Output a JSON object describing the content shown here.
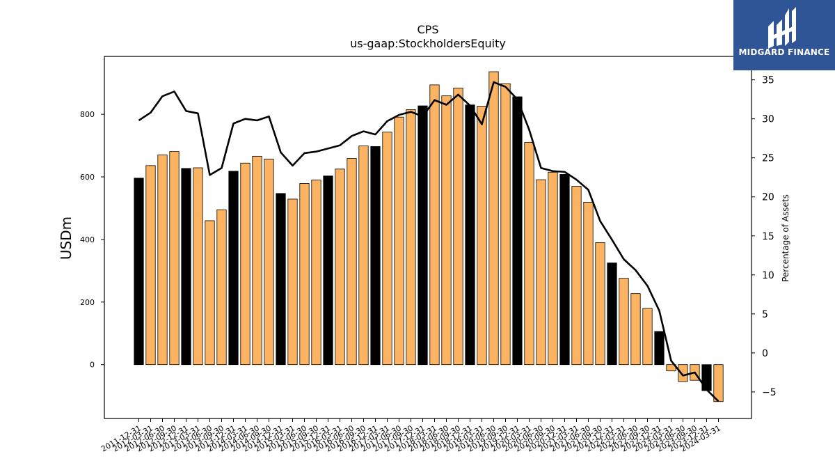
{
  "brand": {
    "name": "MIDGARD FINANCE",
    "color": "#2f5597"
  },
  "colors": {
    "bar_quarter": "#fdb462",
    "bar_year_end": "#000000",
    "line": "#000000"
  },
  "chart_data": {
    "type": "bar",
    "title": "CPS",
    "subtitle": "us-gaap:StockholdersEquity",
    "ylabel": "USDm",
    "y2label": "Percentage of Assets",
    "ylim": [
      -172,
      985
    ],
    "y2lim": [
      -8.4,
      38.0
    ],
    "yticks": [
      0,
      200,
      400,
      600,
      800
    ],
    "y2ticks": [
      -5,
      0,
      5,
      10,
      15,
      20,
      25,
      30,
      35
    ],
    "grid": false,
    "categories": [
      "2011-12-31",
      "2012-03-31",
      "2012-06-30",
      "2012-09-30",
      "2012-12-31",
      "2013-03-31",
      "2013-06-30",
      "2013-09-30",
      "2013-12-31",
      "2014-03-31",
      "2014-06-30",
      "2014-09-30",
      "2014-12-31",
      "2015-03-31",
      "2015-06-30",
      "2015-09-30",
      "2015-12-31",
      "2016-03-31",
      "2016-06-30",
      "2016-09-30",
      "2016-12-31",
      "2017-03-31",
      "2017-06-30",
      "2017-09-30",
      "2017-12-31",
      "2018-03-31",
      "2018-06-30",
      "2018-09-30",
      "2018-12-31",
      "2019-03-31",
      "2019-06-30",
      "2019-09-30",
      "2019-12-31",
      "2020-03-31",
      "2020-06-30",
      "2020-09-30",
      "2020-12-31",
      "2021-03-31",
      "2021-06-30",
      "2021-09-30",
      "2021-12-31",
      "2022-03-31",
      "2022-06-30",
      "2022-09-30",
      "2022-12-31",
      "2023-03-31",
      "2023-06-30",
      "2023-09-30",
      "2023-12-31",
      "2024-03-31"
    ],
    "xtick_labels": [
      "2011-12-31",
      "2012-03-31",
      "2012-06-30",
      "2012-09-30",
      "2012-12-31",
      "2013-03-31",
      "2013-06-30",
      "2013-09-30",
      "2013-12-31",
      "2014-03-31",
      "2014-06-30",
      "2014-09-30",
      "2014-12-31",
      "2015-03-31",
      "2015-06-30",
      "2015-09-30",
      "2015-12-31",
      "2016-03-31",
      "2016-06-30",
      "2016-09-30",
      "2016-12-31",
      "2017-03-31",
      "2017-06-30",
      "2017-09-30",
      "2017-12-31",
      "2018-03-31",
      "2018-06-30",
      "2018-09-30",
      "2018-12-31",
      "2019-03-31",
      "2019-06-30",
      "2019-09-30",
      "2019-12-31",
      "2020-03-31",
      "2020-06-30",
      "2020-09-30",
      "2020-12-31",
      "2021-03-31",
      "2021-06-30",
      "2021-09-30",
      "2021-12-31",
      "2022-03-31",
      "2022-06-30",
      "2022-09-30",
      "2022-12-31",
      "2023-03-31",
      "2023-06-30",
      "2023-09-30",
      "2023-12-31",
      "2024-03-31"
    ],
    "series": [
      {
        "type": "bar",
        "axis": "left",
        "values": [
          596,
          636,
          670,
          681,
          627,
          629,
          460,
          495,
          618,
          644,
          666,
          657,
          547,
          529,
          579,
          590,
          603,
          625,
          659,
          699,
          697,
          743,
          791,
          815,
          827,
          894,
          859,
          884,
          830,
          826,
          936,
          898,
          856,
          710,
          591,
          615,
          608,
          570,
          519,
          390,
          325,
          276,
          227,
          180,
          106,
          -20,
          -54,
          -50,
          -83,
          -118
        ]
      },
      {
        "type": "line",
        "axis": "right",
        "values": [
          29.8,
          30.8,
          32.9,
          33.5,
          31.0,
          30.7,
          22.8,
          23.7,
          29.4,
          30.0,
          29.8,
          30.3,
          25.7,
          24.0,
          25.6,
          25.8,
          26.2,
          26.6,
          27.8,
          28.4,
          28.0,
          29.7,
          30.5,
          30.9,
          30.3,
          32.4,
          31.8,
          33.1,
          31.7,
          29.3,
          34.7,
          34.1,
          32.5,
          28.6,
          23.7,
          23.3,
          23.2,
          22.2,
          20.9,
          16.9,
          14.5,
          12.0,
          10.6,
          8.6,
          5.4,
          -1.0,
          -2.9,
          -2.5,
          -4.7,
          -6.2
        ]
      }
    ]
  }
}
